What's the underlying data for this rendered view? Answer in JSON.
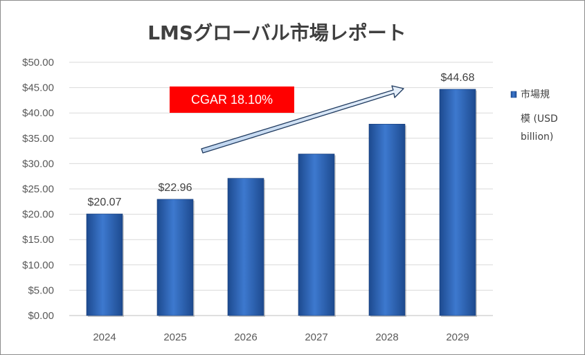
{
  "chart_data": {
    "type": "bar",
    "title": "LMSグローバル市場レポート",
    "categories": [
      "2024",
      "2025",
      "2026",
      "2027",
      "2028",
      "2029"
    ],
    "series": [
      {
        "name": "市場規模 (USD billion)",
        "values": [
          20.07,
          22.96,
          27.1,
          31.9,
          37.8,
          44.68
        ],
        "color": "#2e62b0"
      }
    ],
    "data_labels": [
      "$20.07",
      "$22.96",
      "",
      "",
      "",
      "$44.68"
    ],
    "y_ticks": [
      "$0.00",
      "$5.00",
      "$10.00",
      "$15.00",
      "$20.00",
      "$25.00",
      "$30.00",
      "$35.00",
      "$40.00",
      "$45.00",
      "$50.00"
    ],
    "ylim": [
      0,
      50
    ],
    "grid": true,
    "legend": {
      "position": "right",
      "lines": [
        "市場規",
        "模 (USD",
        "billion)"
      ]
    },
    "annotation": {
      "text": "CGAR 18.10%",
      "color": "#ff0000",
      "arrow": "up-right"
    }
  }
}
